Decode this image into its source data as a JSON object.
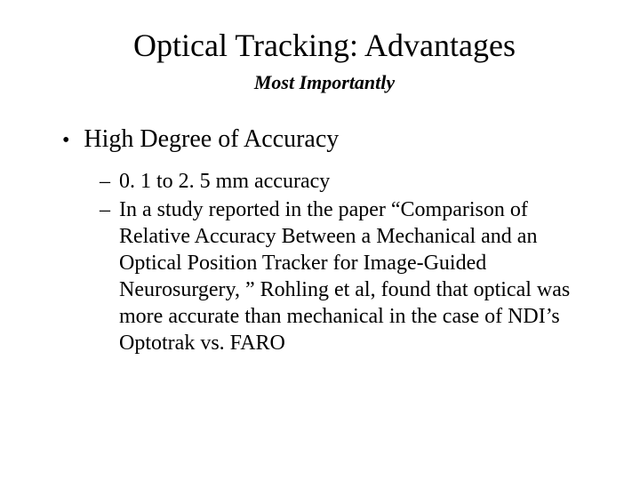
{
  "slide": {
    "title": "Optical Tracking: Advantages",
    "subtitle": "Most Importantly",
    "bullets": {
      "l1": {
        "text": "High Degree of Accuracy"
      },
      "l2a": {
        "text": "0. 1 to 2. 5 mm accuracy"
      },
      "l2b": {
        "text": "In a study reported in the paper “Comparison of Relative Accuracy Between a Mechanical and an Optical Position Tracker for Image-Guided Neurosurgery, ” Rohling et al, found that optical was more accurate than mechanical in the case of NDI’s Optotrak vs. FARO"
      }
    }
  }
}
